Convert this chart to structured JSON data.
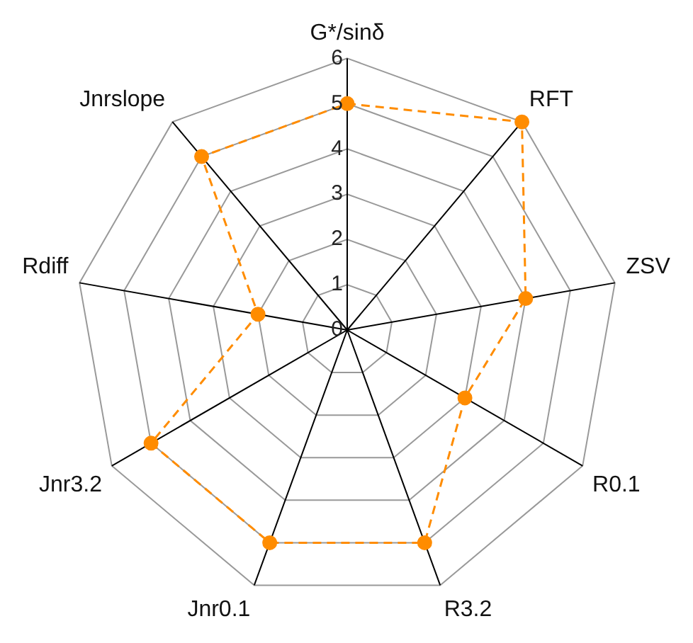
{
  "chart_data": {
    "type": "radar",
    "categories": [
      "G*/sinδ",
      "RFT",
      "ZSV",
      "R0.1",
      "R3.2",
      "Jnr0.1",
      "Jnr3.2",
      "Rdiff",
      "Jnrslope"
    ],
    "series": [
      {
        "color": "#ff8c00",
        "values": [
          5,
          6,
          4,
          3,
          5,
          5,
          5,
          2,
          5
        ]
      }
    ],
    "ylim": [
      0,
      6
    ],
    "yticks": [
      0,
      1,
      2,
      3,
      4,
      5,
      6
    ],
    "grid": true,
    "legend": false,
    "marker": "circle",
    "line_style": "dashed"
  }
}
